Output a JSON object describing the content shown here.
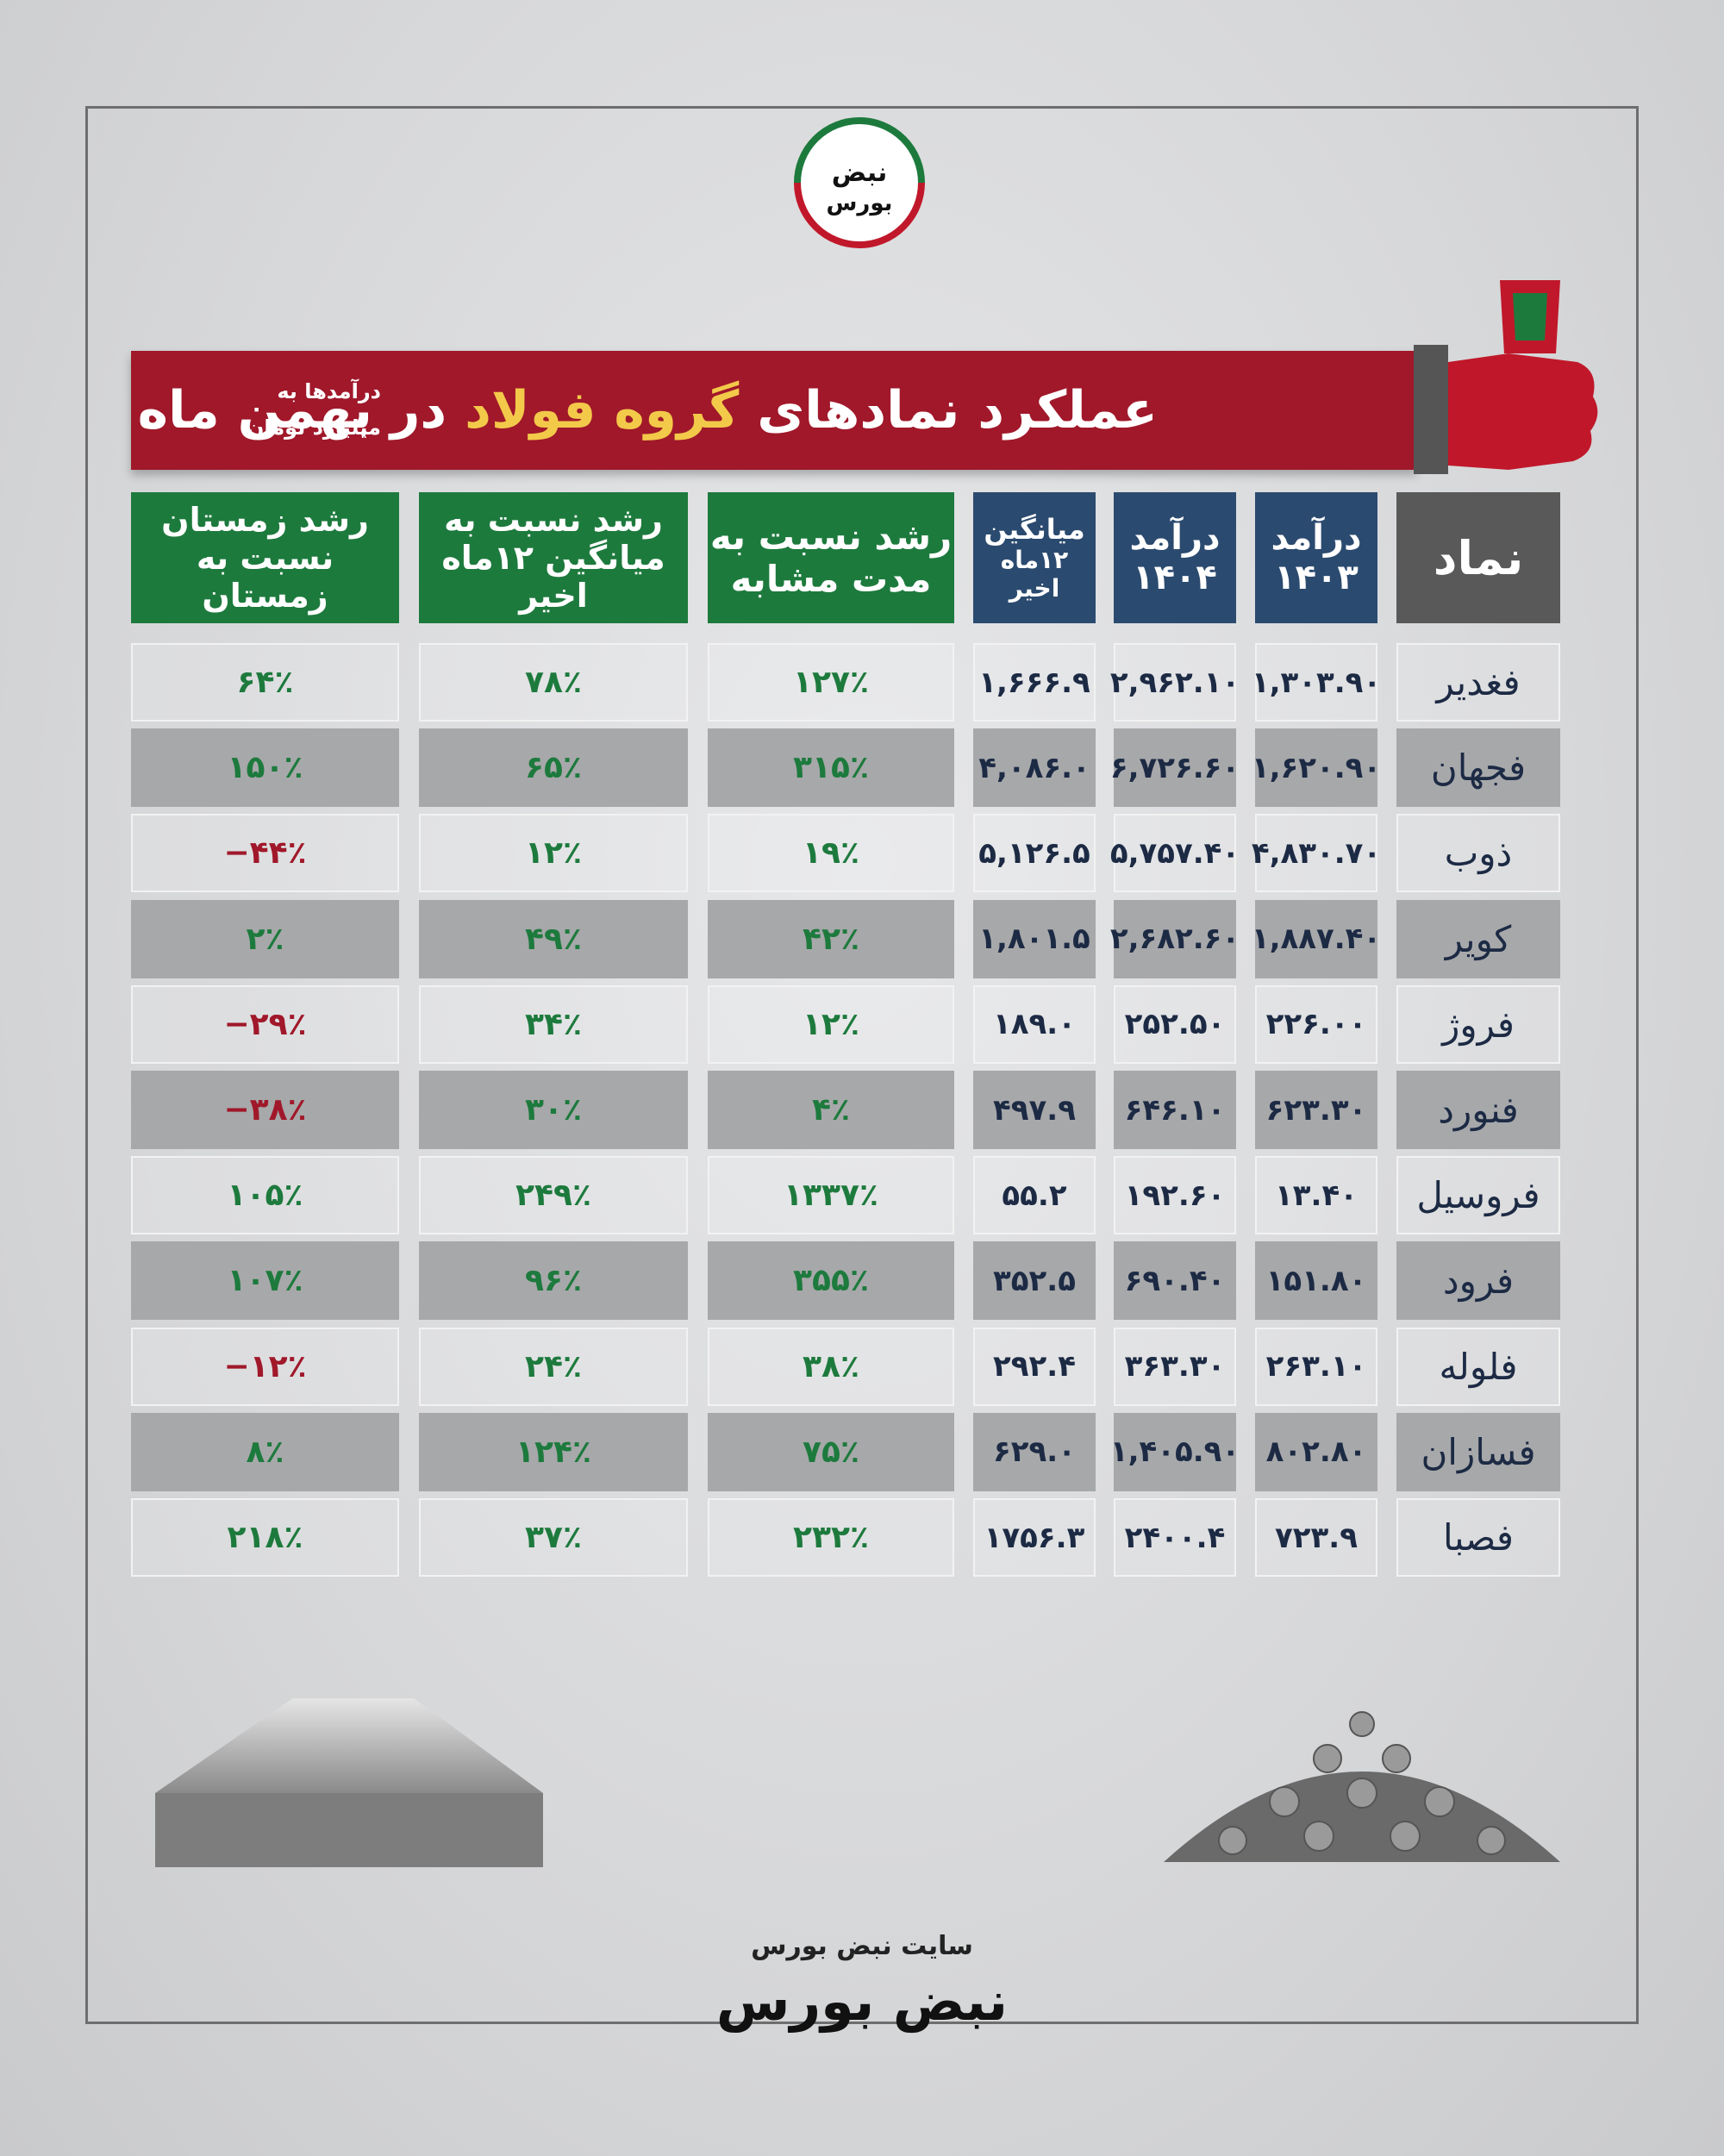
{
  "logo": {
    "line1": "نبض",
    "line2": "بورس"
  },
  "header": {
    "title_parts": [
      "عملکرد نمادهای",
      "گروه فولاد",
      "در بهمن ماه"
    ],
    "unit_lines": [
      "درآمدها به",
      "میلیارد تومان"
    ]
  },
  "table": {
    "columns": [
      [
        "نماد"
      ],
      [
        "درآمد",
        "۱۴۰۳"
      ],
      [
        "درآمد",
        "۱۴۰۴"
      ],
      [
        "میانگین",
        "۱۲ماه اخیر"
      ],
      [
        "رشد نسبت به",
        "مدت مشابه"
      ],
      [
        "رشد نسبت به",
        "میانگین ۱۲ماه اخیر"
      ],
      [
        "رشد زمستان",
        "نسبت به زمستان"
      ]
    ],
    "rows": [
      [
        "فغدیر",
        "۱,۳۰۳.۹۰",
        "۲,۹۶۲.۱۰",
        "۱,۶۶۶.۹",
        "۱۲۷٪",
        "۷۸٪",
        "۶۴٪"
      ],
      [
        "فجهان",
        "۱,۶۲۰.۹۰",
        "۶,۷۲۶.۶۰",
        "۴,۰۸۶.۰",
        "۳۱۵٪",
        "۶۵٪",
        "۱۵۰٪"
      ],
      [
        "ذوب",
        "۴,۸۳۰.۷۰",
        "۵,۷۵۷.۴۰",
        "۵,۱۲۶.۵",
        "۱۹٪",
        "۱۲٪",
        "−۴۴٪"
      ],
      [
        "کویر",
        "۱,۸۸۷.۴۰",
        "۲,۶۸۲.۶۰",
        "۱,۸۰۱.۵",
        "۴۲٪",
        "۴۹٪",
        "۲٪"
      ],
      [
        "فروژ",
        "۲۲۶.۰۰",
        "۲۵۲.۵۰",
        "۱۸۹.۰",
        "۱۲٪",
        "۳۴٪",
        "−۲۹٪"
      ],
      [
        "فنورد",
        "۶۲۳.۳۰",
        "۶۴۶.۱۰",
        "۴۹۷.۹",
        "۴٪",
        "۳۰٪",
        "−۳۸٪"
      ],
      [
        "فروسیل",
        "۱۳.۴۰",
        "۱۹۲.۶۰",
        "۵۵.۲",
        "۱۳۳۷٪",
        "۲۴۹٪",
        "۱۰۵٪"
      ],
      [
        "فرود",
        "۱۵۱.۸۰",
        "۶۹۰.۴۰",
        "۳۵۲.۵",
        "۳۵۵٪",
        "۹۶٪",
        "۱۰۷٪"
      ],
      [
        "فلوله",
        "۲۶۳.۱۰",
        "۳۶۳.۳۰",
        "۲۹۲.۴",
        "۳۸٪",
        "۲۴٪",
        "−۱۲٪"
      ],
      [
        "فسازان",
        "۸۰۲.۸۰",
        "۱,۴۰۵.۹۰",
        "۶۲۹.۰",
        "۷۵٪",
        "۱۲۴٪",
        "۸٪"
      ],
      [
        "فصبا",
        "۷۲۳.۹",
        "۲۴۰۰.۴",
        "۱۷۵۶.۳",
        "۲۳۲٪",
        "۳۷٪",
        "۲۱۸٪"
      ]
    ]
  },
  "footer": {
    "site": "سایت نبض بورس",
    "brand": "نبض بورس"
  }
}
